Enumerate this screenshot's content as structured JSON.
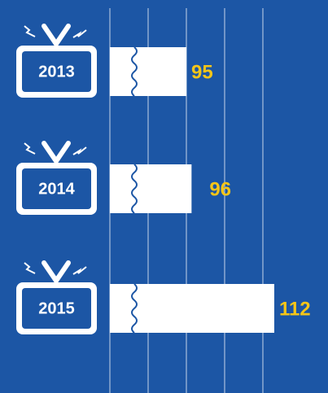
{
  "chart_data": {
    "type": "bar",
    "orientation": "horizontal",
    "axis_break": true,
    "categories": [
      "2013",
      "2014",
      "2015"
    ],
    "values": [
      95,
      96,
      112
    ],
    "color": "#ffffff",
    "label_color": "#f5c518",
    "background": "#1c56a5",
    "xlim": [
      80.2,
      122.4
    ],
    "xticks": [
      80.2,
      87.6,
      95,
      102.4,
      109.8
    ],
    "grid": true
  }
}
